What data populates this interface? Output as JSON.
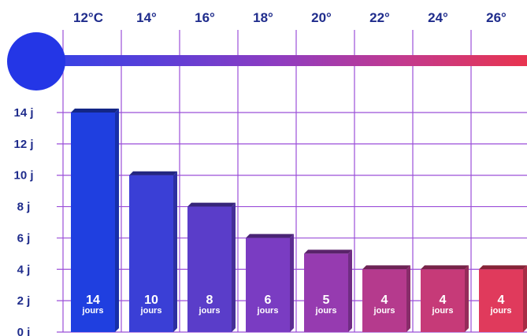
{
  "chart_data": {
    "type": "bar",
    "categories": [
      "12°C",
      "14°",
      "16°",
      "18°",
      "20°",
      "22°",
      "24°",
      "26°"
    ],
    "values": [
      14,
      10,
      8,
      6,
      5,
      4,
      4,
      4
    ],
    "value_unit": "jours",
    "y_ticks": [
      "0 j",
      "2 j",
      "4 j",
      "6 j",
      "8 j",
      "10 j",
      "12 j",
      "14 j"
    ],
    "ylim": [
      0,
      14
    ],
    "grid": true,
    "colors": [
      "#1f3fe0",
      "#3a3fd6",
      "#5a3dc9",
      "#7a3cc2",
      "#963bb0",
      "#b53a8d",
      "#c63a78",
      "#e03a5c"
    ],
    "thermometer_gradient": [
      "#2e43e8",
      "#5a3fd8",
      "#8f3cc0",
      "#c33a8e",
      "#e8344f"
    ]
  }
}
